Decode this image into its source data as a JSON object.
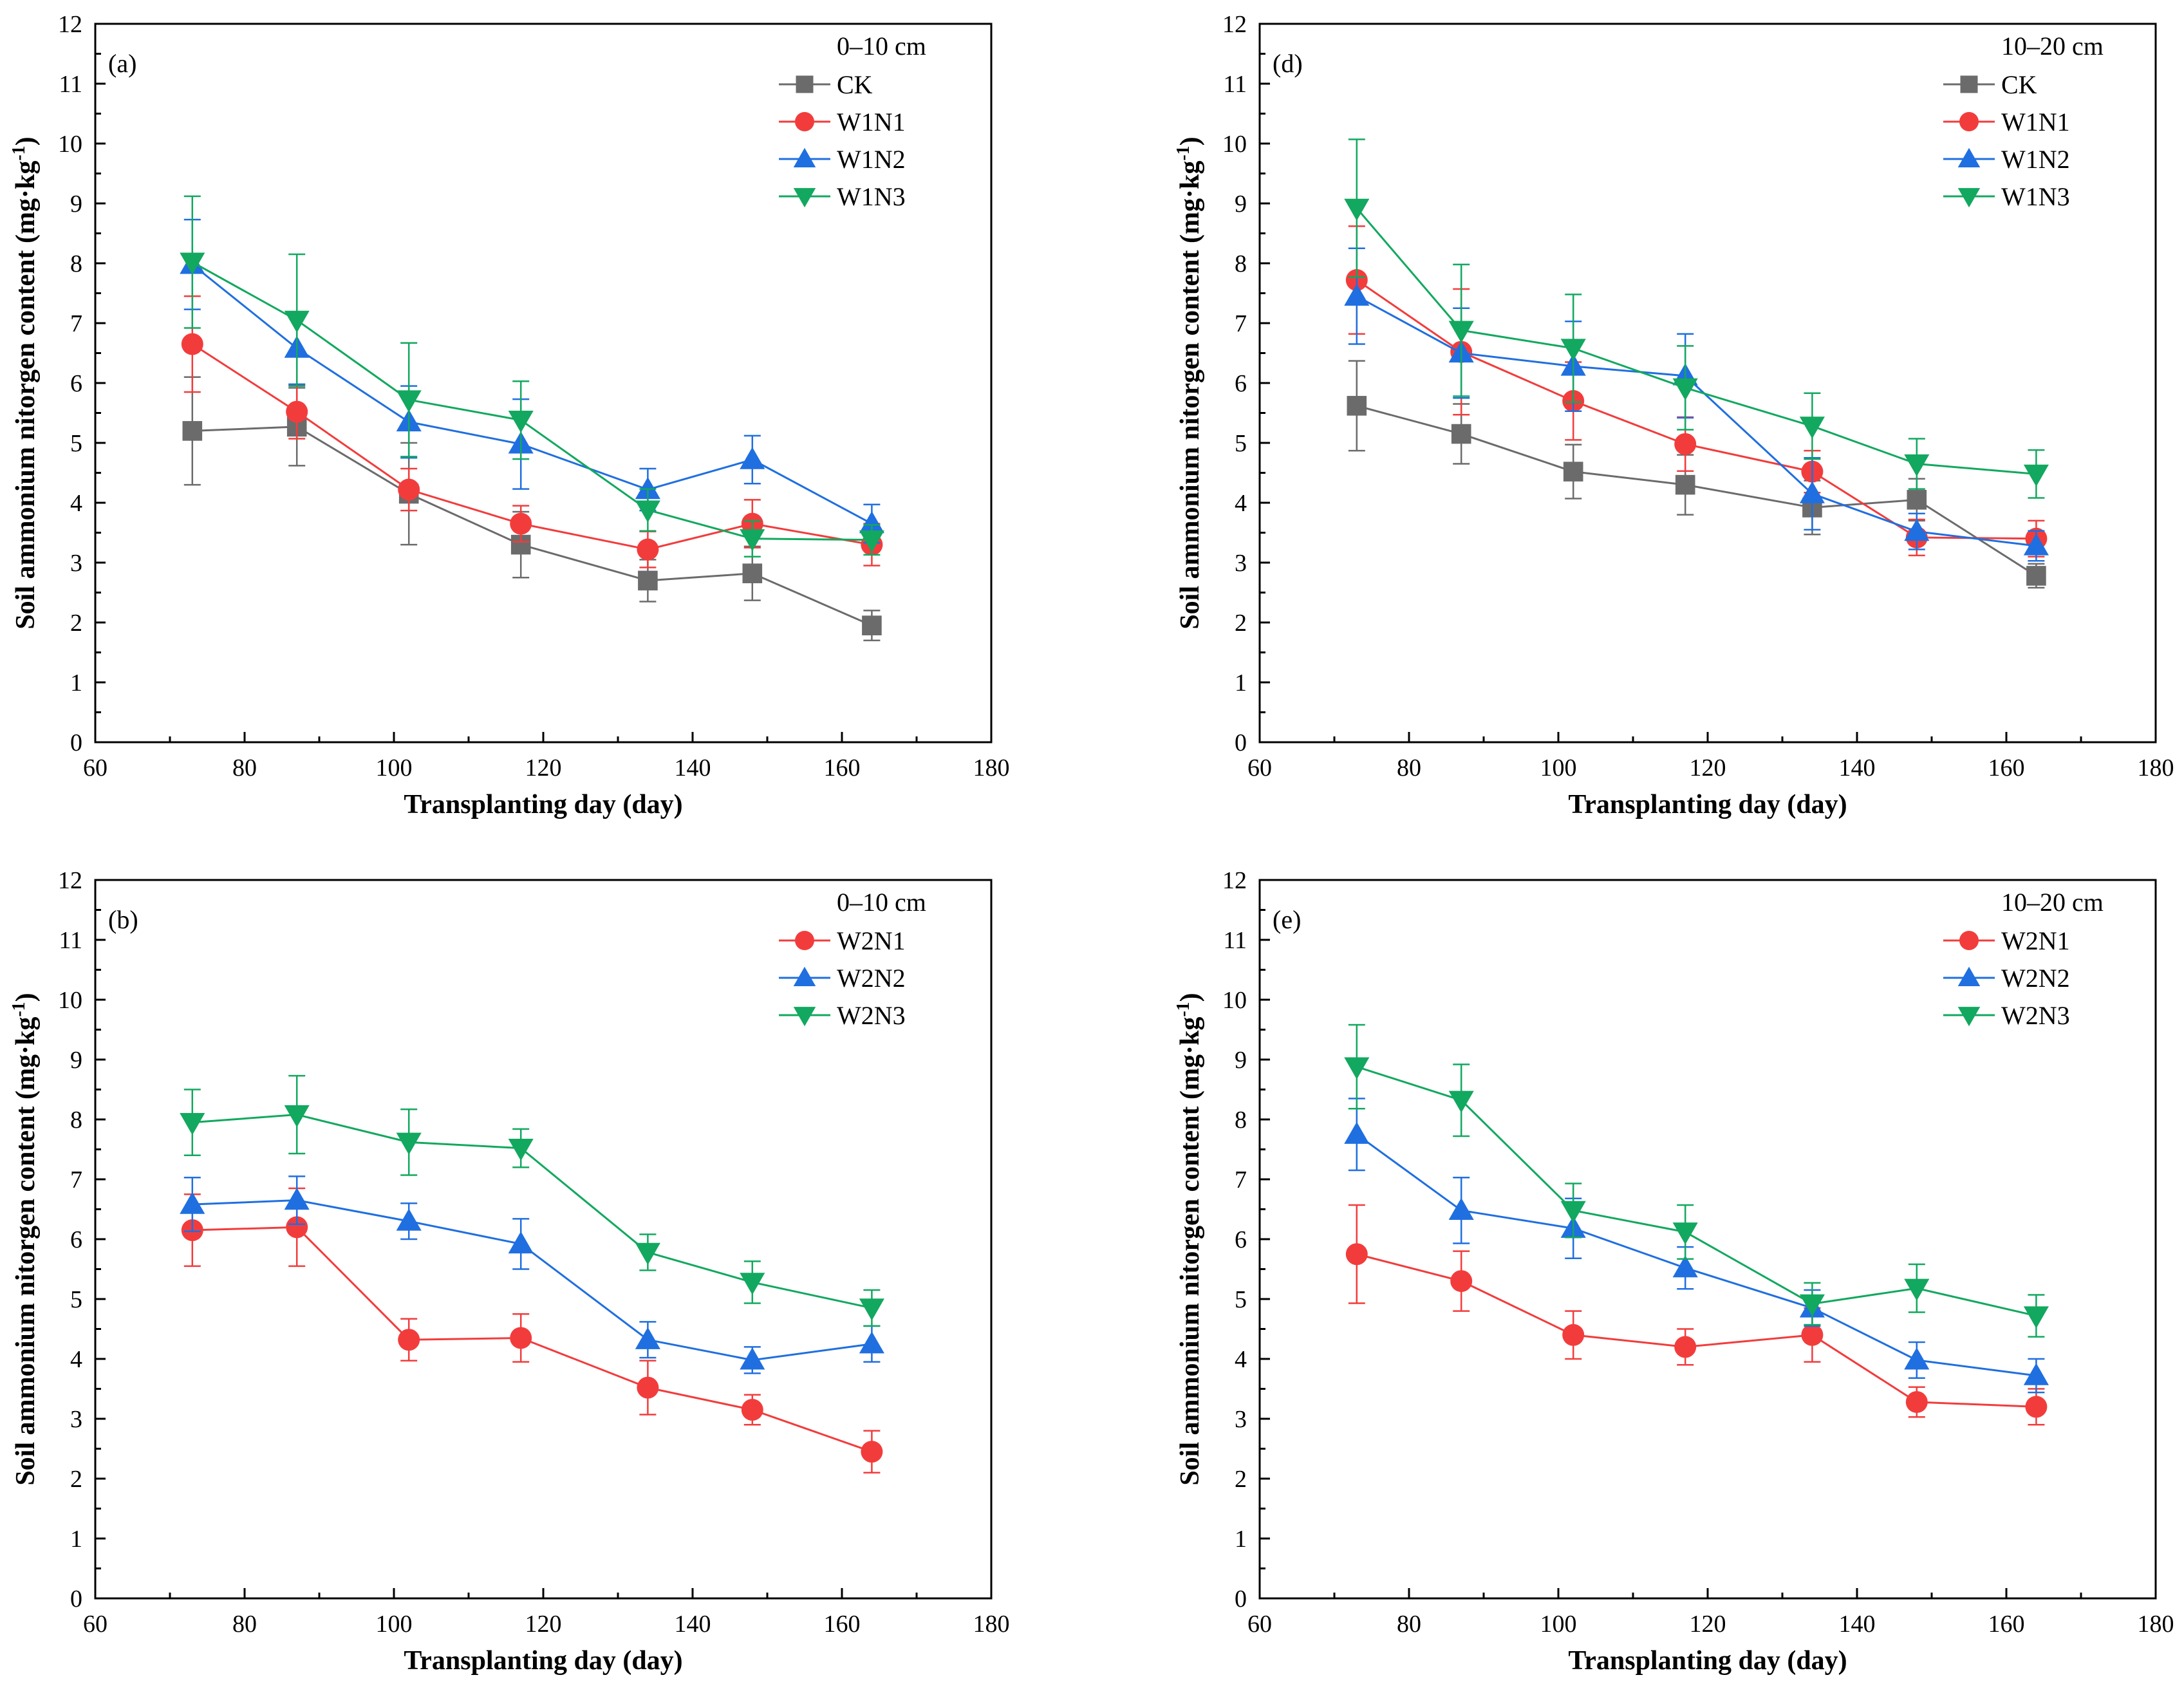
{
  "chart_data": [
    {
      "type": "line",
      "panel_label": "(a)",
      "depth_label": "0–10 cm",
      "xlabel": "Transplanting day (day)",
      "ylabel": "Soil ammonium nitorgen content (mg·kg",
      "ylabel_sup": "-1",
      "ylabel_end": ")",
      "xlim": [
        60,
        180
      ],
      "ylim": [
        0,
        12
      ],
      "xticks": [
        60,
        80,
        100,
        120,
        140,
        160,
        180
      ],
      "yticks": [
        0,
        1,
        2,
        3,
        4,
        5,
        6,
        7,
        8,
        9,
        10,
        11,
        12
      ],
      "x": [
        73,
        87,
        102,
        117,
        134,
        148,
        164
      ],
      "series": [
        {
          "name": "CK",
          "color": "#6b6b6b",
          "marker": "square",
          "values": [
            5.2,
            5.27,
            4.15,
            3.3,
            2.7,
            2.82,
            1.95
          ],
          "errors": [
            0.9,
            0.65,
            0.85,
            0.55,
            0.35,
            0.45,
            0.25
          ]
        },
        {
          "name": "W1N1",
          "color": "#f23c3c",
          "marker": "circle",
          "values": [
            6.65,
            5.52,
            4.22,
            3.65,
            3.22,
            3.65,
            3.3
          ],
          "errors": [
            0.8,
            0.45,
            0.35,
            0.3,
            0.3,
            0.4,
            0.35
          ]
        },
        {
          "name": "W1N2",
          "color": "#1f6fe0",
          "marker": "triangle-up",
          "values": [
            7.98,
            6.58,
            5.35,
            4.98,
            4.22,
            4.72,
            3.65
          ],
          "errors": [
            0.75,
            0.6,
            0.6,
            0.75,
            0.35,
            0.4,
            0.32
          ]
        },
        {
          "name": "W1N3",
          "color": "#12a85f",
          "marker": "triangle-down",
          "values": [
            8.02,
            7.05,
            5.72,
            5.38,
            3.88,
            3.4,
            3.38
          ],
          "errors": [
            1.1,
            1.1,
            0.95,
            0.65,
            0.35,
            0.3,
            0.25
          ]
        }
      ]
    },
    {
      "type": "line",
      "panel_label": "(d)",
      "depth_label": "10–20 cm",
      "xlabel": "Transplanting day (day)",
      "ylabel": "Soil ammonium nitorgen content (mg·kg",
      "ylabel_sup": "-1",
      "ylabel_end": ")",
      "xlim": [
        60,
        180
      ],
      "ylim": [
        0,
        12
      ],
      "xticks": [
        60,
        80,
        100,
        120,
        140,
        160,
        180
      ],
      "yticks": [
        0,
        1,
        2,
        3,
        4,
        5,
        6,
        7,
        8,
        9,
        10,
        11,
        12
      ],
      "x": [
        73,
        87,
        102,
        117,
        134,
        148,
        164
      ],
      "series": [
        {
          "name": "CK",
          "color": "#6b6b6b",
          "marker": "square",
          "values": [
            5.62,
            5.15,
            4.52,
            4.3,
            3.92,
            4.05,
            2.78
          ],
          "errors": [
            0.75,
            0.5,
            0.45,
            0.5,
            0.45,
            0.35,
            0.2
          ]
        },
        {
          "name": "W1N1",
          "color": "#f23c3c",
          "marker": "circle",
          "values": [
            7.72,
            6.52,
            5.7,
            4.98,
            4.52,
            3.42,
            3.4
          ],
          "errors": [
            0.9,
            1.05,
            0.65,
            0.45,
            0.35,
            0.3,
            0.3
          ]
        },
        {
          "name": "W1N2",
          "color": "#1f6fe0",
          "marker": "triangle-up",
          "values": [
            7.45,
            6.5,
            6.28,
            6.12,
            4.15,
            3.52,
            3.28
          ],
          "errors": [
            0.8,
            0.75,
            0.75,
            0.7,
            0.6,
            0.3,
            0.25
          ]
        },
        {
          "name": "W1N3",
          "color": "#12a85f",
          "marker": "triangle-down",
          "values": [
            8.92,
            6.88,
            6.58,
            5.92,
            5.28,
            4.65,
            4.48
          ],
          "errors": [
            1.15,
            1.1,
            0.9,
            0.7,
            0.55,
            0.42,
            0.4
          ]
        }
      ]
    },
    {
      "type": "line",
      "panel_label": "(b)",
      "depth_label": "0–10 cm",
      "xlabel": "Transplanting day (day)",
      "ylabel": "Soil ammonium nitorgen content (mg·kg",
      "ylabel_sup": "-1",
      "ylabel_end": ")",
      "xlim": [
        60,
        180
      ],
      "ylim": [
        0,
        12
      ],
      "xticks": [
        60,
        80,
        100,
        120,
        140,
        160,
        180
      ],
      "yticks": [
        0,
        1,
        2,
        3,
        4,
        5,
        6,
        7,
        8,
        9,
        10,
        11,
        12
      ],
      "x": [
        73,
        87,
        102,
        117,
        134,
        148,
        164
      ],
      "series": [
        {
          "name": "W2N1",
          "color": "#f23c3c",
          "marker": "circle",
          "values": [
            6.15,
            6.2,
            4.32,
            4.35,
            3.52,
            3.15,
            2.45
          ],
          "errors": [
            0.6,
            0.65,
            0.35,
            0.4,
            0.45,
            0.25,
            0.35
          ]
        },
        {
          "name": "W2N2",
          "color": "#1f6fe0",
          "marker": "triangle-up",
          "values": [
            6.58,
            6.65,
            6.3,
            5.92,
            4.32,
            3.98,
            4.25
          ],
          "errors": [
            0.45,
            0.4,
            0.3,
            0.42,
            0.3,
            0.22,
            0.3
          ]
        },
        {
          "name": "W2N3",
          "color": "#12a85f",
          "marker": "triangle-down",
          "values": [
            7.95,
            8.08,
            7.62,
            7.52,
            5.78,
            5.28,
            4.85
          ],
          "errors": [
            0.55,
            0.65,
            0.55,
            0.32,
            0.3,
            0.35,
            0.3
          ]
        }
      ]
    },
    {
      "type": "line",
      "panel_label": "(e)",
      "depth_label": "10–20 cm",
      "xlabel": "Transplanting day (day)",
      "ylabel": "Soil ammonium nitorgen content (mg·kg",
      "ylabel_sup": "-1",
      "ylabel_end": ")",
      "xlim": [
        60,
        180
      ],
      "ylim": [
        0,
        12
      ],
      "xticks": [
        60,
        80,
        100,
        120,
        140,
        160,
        180
      ],
      "yticks": [
        0,
        1,
        2,
        3,
        4,
        5,
        6,
        7,
        8,
        9,
        10,
        11,
        12
      ],
      "x": [
        73,
        87,
        102,
        117,
        134,
        148,
        164
      ],
      "series": [
        {
          "name": "W2N1",
          "color": "#f23c3c",
          "marker": "circle",
          "values": [
            5.75,
            5.3,
            4.4,
            4.2,
            4.4,
            3.28,
            3.2
          ],
          "errors": [
            0.82,
            0.5,
            0.4,
            0.3,
            0.45,
            0.25,
            0.3
          ]
        },
        {
          "name": "W2N2",
          "color": "#1f6fe0",
          "marker": "triangle-up",
          "values": [
            7.75,
            6.48,
            6.18,
            5.52,
            4.85,
            3.98,
            3.72
          ],
          "errors": [
            0.6,
            0.55,
            0.5,
            0.35,
            0.3,
            0.3,
            0.28
          ]
        },
        {
          "name": "W2N3",
          "color": "#12a85f",
          "marker": "triangle-down",
          "values": [
            8.88,
            8.32,
            6.48,
            6.12,
            4.92,
            5.18,
            4.72
          ],
          "errors": [
            0.7,
            0.6,
            0.45,
            0.45,
            0.35,
            0.4,
            0.35
          ]
        }
      ]
    }
  ]
}
